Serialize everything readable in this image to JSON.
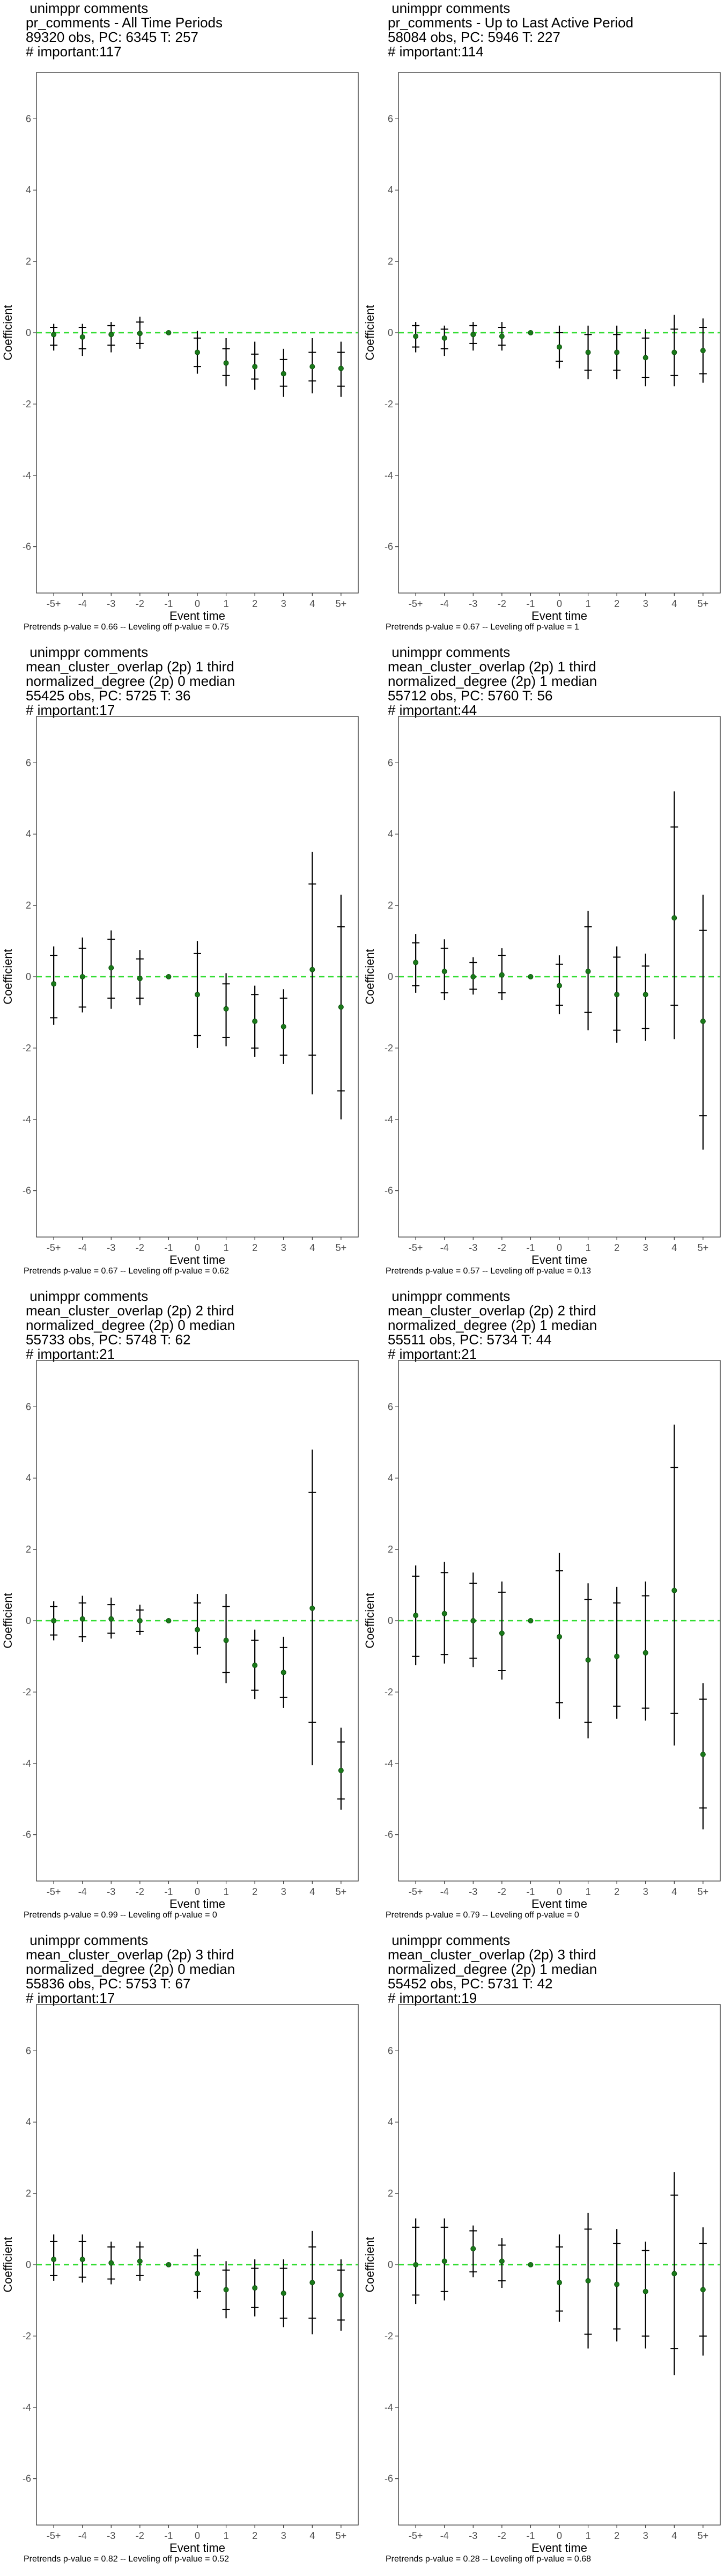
{
  "chart_data": [
    {
      "type": "scatter",
      "title_lines": [
        " unimppr comments",
        "pr_comments - All Time Periods",
        "89320 obs, PC: 6345 T: 257",
        "# important:117"
      ],
      "xlabel": "Event time",
      "ylabel": "Coefficient",
      "categories": [
        "-5+",
        "-4",
        "-3",
        "-2",
        "-1",
        "0",
        "1",
        "2",
        "3",
        "4",
        "5+"
      ],
      "ylim": [
        -7.3,
        7.3
      ],
      "yticks": [
        -6,
        -4,
        -2,
        0,
        2,
        4,
        6
      ],
      "points": [
        -0.05,
        -0.12,
        -0.05,
        -0.02,
        0.0,
        -0.55,
        -0.85,
        -0.95,
        -1.15,
        -0.95,
        -1.0
      ],
      "ci_outer": [
        [
          -0.5,
          0.25
        ],
        [
          -0.65,
          0.25
        ],
        [
          -0.55,
          0.3
        ],
        [
          -0.45,
          0.45
        ],
        [
          0.0,
          0.0
        ],
        [
          -1.15,
          0.05
        ],
        [
          -1.5,
          -0.15
        ],
        [
          -1.6,
          -0.25
        ],
        [
          -1.8,
          -0.45
        ],
        [
          -1.7,
          -0.15
        ],
        [
          -1.8,
          -0.25
        ]
      ],
      "ci_inner": [
        [
          -0.35,
          0.15
        ],
        [
          -0.45,
          0.15
        ],
        [
          -0.35,
          0.2
        ],
        [
          -0.3,
          0.3
        ],
        [
          0.0,
          0.0
        ],
        [
          -0.95,
          -0.15
        ],
        [
          -1.2,
          -0.45
        ],
        [
          -1.3,
          -0.6
        ],
        [
          -1.5,
          -0.75
        ],
        [
          -1.35,
          -0.55
        ],
        [
          -1.5,
          -0.55
        ]
      ],
      "footer": "Pretrends p-value = 0.66 -- Leveling off p-value = 0.75"
    },
    {
      "type": "scatter",
      "title_lines": [
        " unimppr comments",
        "pr_comments - Up to Last Active Period",
        "58084 obs, PC: 5946 T: 227",
        "# important:114"
      ],
      "xlabel": "Event time",
      "ylabel": "Coefficient",
      "categories": [
        "-5+",
        "-4",
        "-3",
        "-2",
        "-1",
        "0",
        "1",
        "2",
        "3",
        "4",
        "5+"
      ],
      "ylim": [
        -7.3,
        7.3
      ],
      "yticks": [
        -6,
        -4,
        -2,
        0,
        2,
        4,
        6
      ],
      "points": [
        -0.1,
        -0.15,
        -0.05,
        -0.1,
        0.0,
        -0.4,
        -0.55,
        -0.55,
        -0.7,
        -0.55,
        -0.5
      ],
      "ci_outer": [
        [
          -0.55,
          0.3
        ],
        [
          -0.65,
          0.2
        ],
        [
          -0.5,
          0.3
        ],
        [
          -0.5,
          0.3
        ],
        [
          0.0,
          0.0
        ],
        [
          -1.0,
          0.2
        ],
        [
          -1.3,
          0.2
        ],
        [
          -1.3,
          0.2
        ],
        [
          -1.5,
          0.1
        ],
        [
          -1.5,
          0.5
        ],
        [
          -1.4,
          0.4
        ]
      ],
      "ci_inner": [
        [
          -0.4,
          0.2
        ],
        [
          -0.45,
          0.1
        ],
        [
          -0.3,
          0.2
        ],
        [
          -0.35,
          0.15
        ],
        [
          0.0,
          0.0
        ],
        [
          -0.8,
          0.0
        ],
        [
          -1.05,
          -0.05
        ],
        [
          -1.05,
          -0.05
        ],
        [
          -1.25,
          -0.15
        ],
        [
          -1.2,
          0.1
        ],
        [
          -1.15,
          0.15
        ]
      ],
      "footer": "Pretrends p-value = 0.67 -- Leveling off p-value = 1"
    },
    {
      "type": "scatter",
      "title_lines": [
        " unimppr comments",
        "mean_cluster_overlap (2p) 1 third",
        "normalized_degree (2p) 0 median",
        "55425 obs, PC: 5725 T: 36",
        "# important:17"
      ],
      "xlabel": "Event time",
      "ylabel": "Coefficient",
      "categories": [
        "-5+",
        "-4",
        "-3",
        "-2",
        "-1",
        "0",
        "1",
        "2",
        "3",
        "4",
        "5+"
      ],
      "ylim": [
        -7.3,
        7.3
      ],
      "yticks": [
        -6,
        -4,
        -2,
        0,
        2,
        4,
        6
      ],
      "points": [
        -0.2,
        0.0,
        0.25,
        -0.05,
        0.0,
        -0.5,
        -0.9,
        -1.25,
        -1.4,
        0.2,
        -0.85
      ],
      "ci_outer": [
        [
          -1.35,
          0.85
        ],
        [
          -1.0,
          1.1
        ],
        [
          -0.9,
          1.3
        ],
        [
          -0.8,
          0.75
        ],
        [
          0.0,
          0.0
        ],
        [
          -2.0,
          1.0
        ],
        [
          -1.95,
          0.1
        ],
        [
          -2.25,
          -0.25
        ],
        [
          -2.45,
          -0.35
        ],
        [
          -3.3,
          3.5
        ],
        [
          -4.0,
          2.3
        ]
      ],
      "ci_inner": [
        [
          -1.15,
          0.6
        ],
        [
          -0.85,
          0.8
        ],
        [
          -0.6,
          1.05
        ],
        [
          -0.6,
          0.5
        ],
        [
          0.0,
          0.0
        ],
        [
          -1.65,
          0.65
        ],
        [
          -1.7,
          -0.2
        ],
        [
          -2.0,
          -0.5
        ],
        [
          -2.2,
          -0.6
        ],
        [
          -2.2,
          2.6
        ],
        [
          -3.2,
          1.4
        ]
      ],
      "footer": "Pretrends p-value = 0.67 -- Leveling off p-value = 0.62"
    },
    {
      "type": "scatter",
      "title_lines": [
        " unimppr comments",
        "mean_cluster_overlap (2p) 1 third",
        "normalized_degree (2p) 1 median",
        "55712 obs, PC: 5760 T: 56",
        "# important:44"
      ],
      "xlabel": "Event time",
      "ylabel": "Coefficient",
      "categories": [
        "-5+",
        "-4",
        "-3",
        "-2",
        "-1",
        "0",
        "1",
        "2",
        "3",
        "4",
        "5+"
      ],
      "ylim": [
        -7.3,
        7.3
      ],
      "yticks": [
        -6,
        -4,
        -2,
        0,
        2,
        4,
        6
      ],
      "points": [
        0.4,
        0.15,
        0.0,
        0.05,
        0.0,
        -0.25,
        0.15,
        -0.5,
        -0.5,
        1.65,
        -1.25
      ],
      "ci_outer": [
        [
          -0.45,
          1.2
        ],
        [
          -0.65,
          1.05
        ],
        [
          -0.5,
          0.55
        ],
        [
          -0.65,
          0.8
        ],
        [
          0.0,
          0.0
        ],
        [
          -1.05,
          0.6
        ],
        [
          -1.5,
          1.85
        ],
        [
          -1.85,
          0.85
        ],
        [
          -1.8,
          0.65
        ],
        [
          -1.75,
          5.2
        ],
        [
          -4.85,
          2.3
        ]
      ],
      "ci_inner": [
        [
          -0.25,
          0.95
        ],
        [
          -0.45,
          0.8
        ],
        [
          -0.35,
          0.4
        ],
        [
          -0.45,
          0.6
        ],
        [
          0.0,
          0.0
        ],
        [
          -0.8,
          0.35
        ],
        [
          -1.0,
          1.4
        ],
        [
          -1.5,
          0.55
        ],
        [
          -1.45,
          0.3
        ],
        [
          -0.8,
          4.2
        ],
        [
          -3.9,
          1.3
        ]
      ],
      "footer": "Pretrends p-value = 0.57 -- Leveling off p-value = 0.13"
    },
    {
      "type": "scatter",
      "title_lines": [
        " unimppr comments",
        "mean_cluster_overlap (2p) 2 third",
        "normalized_degree (2p) 0 median",
        "55733 obs, PC: 5748 T: 62",
        "# important:21"
      ],
      "xlabel": "Event time",
      "ylabel": "Coefficient",
      "categories": [
        "-5+",
        "-4",
        "-3",
        "-2",
        "-1",
        "0",
        "1",
        "2",
        "3",
        "4",
        "5+"
      ],
      "ylim": [
        -7.3,
        7.3
      ],
      "yticks": [
        -6,
        -4,
        -2,
        0,
        2,
        4,
        6
      ],
      "points": [
        0.0,
        0.05,
        0.05,
        0.0,
        0.0,
        -0.25,
        -0.55,
        -1.25,
        -1.45,
        0.35,
        -4.2
      ],
      "ci_outer": [
        [
          -0.55,
          0.55
        ],
        [
          -0.6,
          0.7
        ],
        [
          -0.5,
          0.65
        ],
        [
          -0.4,
          0.45
        ],
        [
          0.0,
          0.0
        ],
        [
          -0.95,
          0.75
        ],
        [
          -1.75,
          0.75
        ],
        [
          -2.2,
          -0.25
        ],
        [
          -2.45,
          -0.45
        ],
        [
          -4.05,
          4.8
        ],
        [
          -5.3,
          -3.0
        ]
      ],
      "ci_inner": [
        [
          -0.4,
          0.4
        ],
        [
          -0.45,
          0.5
        ],
        [
          -0.35,
          0.45
        ],
        [
          -0.3,
          0.3
        ],
        [
          0.0,
          0.0
        ],
        [
          -0.75,
          0.5
        ],
        [
          -1.45,
          0.4
        ],
        [
          -1.95,
          -0.55
        ],
        [
          -2.15,
          -0.75
        ],
        [
          -2.85,
          3.6
        ],
        [
          -5.0,
          -3.4
        ]
      ],
      "footer": "Pretrends p-value = 0.99 -- Leveling off p-value = 0"
    },
    {
      "type": "scatter",
      "title_lines": [
        " unimppr comments",
        "mean_cluster_overlap (2p) 2 third",
        "normalized_degree (2p) 1 median",
        "55511 obs, PC: 5734 T: 44",
        "# important:21"
      ],
      "xlabel": "Event time",
      "ylabel": "Coefficient",
      "categories": [
        "-5+",
        "-4",
        "-3",
        "-2",
        "-1",
        "0",
        "1",
        "2",
        "3",
        "4",
        "5+"
      ],
      "ylim": [
        -7.3,
        7.3
      ],
      "yticks": [
        -6,
        -4,
        -2,
        0,
        2,
        4,
        6
      ],
      "points": [
        0.15,
        0.2,
        0.0,
        -0.35,
        0.0,
        -0.45,
        -1.1,
        -1.0,
        -0.9,
        0.85,
        -3.75
      ],
      "ci_outer": [
        [
          -1.25,
          1.55
        ],
        [
          -1.2,
          1.65
        ],
        [
          -1.3,
          1.35
        ],
        [
          -1.65,
          1.1
        ],
        [
          0.0,
          0.0
        ],
        [
          -2.75,
          1.9
        ],
        [
          -3.3,
          1.05
        ],
        [
          -2.75,
          0.95
        ],
        [
          -2.8,
          1.1
        ],
        [
          -3.5,
          5.5
        ],
        [
          -5.85,
          -1.75
        ]
      ],
      "ci_inner": [
        [
          -1.0,
          1.25
        ],
        [
          -0.95,
          1.35
        ],
        [
          -1.05,
          1.05
        ],
        [
          -1.4,
          0.8
        ],
        [
          0.0,
          0.0
        ],
        [
          -2.3,
          1.4
        ],
        [
          -2.85,
          0.6
        ],
        [
          -2.4,
          0.5
        ],
        [
          -2.45,
          0.7
        ],
        [
          -2.6,
          4.3
        ],
        [
          -5.25,
          -2.2
        ]
      ],
      "footer": "Pretrends p-value = 0.79 -- Leveling off p-value = 0"
    },
    {
      "type": "scatter",
      "title_lines": [
        " unimppr comments",
        "mean_cluster_overlap (2p) 3 third",
        "normalized_degree (2p) 0 median",
        "55836 obs, PC: 5753 T: 67",
        "# important:17"
      ],
      "xlabel": "Event time",
      "ylabel": "Coefficient",
      "categories": [
        "-5+",
        "-4",
        "-3",
        "-2",
        "-1",
        "0",
        "1",
        "2",
        "3",
        "4",
        "5+"
      ],
      "ylim": [
        -7.3,
        7.3
      ],
      "yticks": [
        -6,
        -4,
        -2,
        0,
        2,
        4,
        6
      ],
      "points": [
        0.15,
        0.15,
        0.05,
        0.1,
        0.0,
        -0.25,
        -0.7,
        -0.65,
        -0.8,
        -0.5,
        -0.85
      ],
      "ci_outer": [
        [
          -0.45,
          0.85
        ],
        [
          -0.5,
          0.85
        ],
        [
          -0.55,
          0.65
        ],
        [
          -0.45,
          0.65
        ],
        [
          0.0,
          0.0
        ],
        [
          -0.95,
          0.45
        ],
        [
          -1.5,
          0.1
        ],
        [
          -1.45,
          0.15
        ],
        [
          -1.75,
          0.15
        ],
        [
          -1.95,
          0.95
        ],
        [
          -1.85,
          0.15
        ]
      ],
      "ci_inner": [
        [
          -0.3,
          0.65
        ],
        [
          -0.35,
          0.65
        ],
        [
          -0.4,
          0.5
        ],
        [
          -0.3,
          0.5
        ],
        [
          0.0,
          0.0
        ],
        [
          -0.75,
          0.25
        ],
        [
          -1.25,
          -0.15
        ],
        [
          -1.2,
          -0.1
        ],
        [
          -1.5,
          -0.1
        ],
        [
          -1.5,
          0.5
        ],
        [
          -1.55,
          -0.15
        ]
      ],
      "footer": "Pretrends p-value = 0.82 -- Leveling off p-value = 0.52"
    },
    {
      "type": "scatter",
      "title_lines": [
        " unimppr comments",
        "mean_cluster_overlap (2p) 3 third",
        "normalized_degree (2p) 1 median",
        "55452 obs, PC: 5731 T: 42",
        "# important:19"
      ],
      "xlabel": "Event time",
      "ylabel": "Coefficient",
      "categories": [
        "-5+",
        "-4",
        "-3",
        "-2",
        "-1",
        "0",
        "1",
        "2",
        "3",
        "4",
        "5+"
      ],
      "ylim": [
        -7.3,
        7.3
      ],
      "yticks": [
        -6,
        -4,
        -2,
        0,
        2,
        4,
        6
      ],
      "points": [
        0.0,
        0.1,
        0.45,
        0.1,
        0.0,
        -0.5,
        -0.45,
        -0.55,
        -0.75,
        -0.25,
        -0.7
      ],
      "ci_outer": [
        [
          -1.1,
          1.3
        ],
        [
          -1.0,
          1.3
        ],
        [
          -0.35,
          1.1
        ],
        [
          -0.65,
          0.75
        ],
        [
          0.0,
          0.0
        ],
        [
          -1.6,
          0.85
        ],
        [
          -2.35,
          1.45
        ],
        [
          -2.15,
          1.0
        ],
        [
          -2.35,
          0.65
        ],
        [
          -3.1,
          2.6
        ],
        [
          -2.55,
          1.05
        ]
      ],
      "ci_inner": [
        [
          -0.85,
          1.05
        ],
        [
          -0.75,
          1.05
        ],
        [
          -0.2,
          0.95
        ],
        [
          -0.45,
          0.55
        ],
        [
          0.0,
          0.0
        ],
        [
          -1.3,
          0.5
        ],
        [
          -1.95,
          1.0
        ],
        [
          -1.8,
          0.6
        ],
        [
          -2.0,
          0.4
        ],
        [
          -2.35,
          1.95
        ],
        [
          -2.0,
          0.6
        ]
      ],
      "footer": "Pretrends p-value = 0.28 -- Leveling off p-value = 0.68"
    }
  ],
  "colors": {
    "point": "#1a7a1a",
    "zero_line": "#33dd33",
    "error_bar": "#000000",
    "frame": "#333333",
    "tick_text": "#4d4d4d"
  }
}
